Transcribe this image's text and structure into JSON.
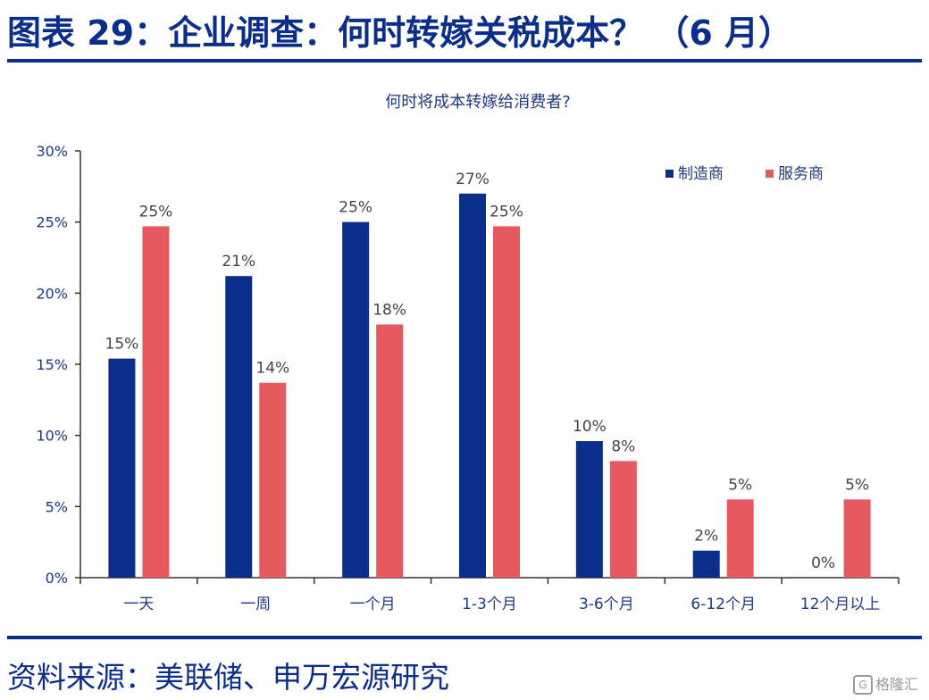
{
  "figure_title": "图表 29：企业调查：何时转嫁关税成本？ （6 月）",
  "source": "资料来源：美联储、申万宏源研究",
  "watermark": "格隆汇",
  "chart_data": {
    "type": "bar",
    "title": "何时将成本转嫁给消费者?",
    "categories": [
      "一天",
      "一周",
      "一个月",
      "1-3个月",
      "3-6个月",
      "6-12个月",
      "12个月以上"
    ],
    "series": [
      {
        "name": "制造商",
        "color": "#0b2e8a",
        "values": [
          15.4,
          21.2,
          25.0,
          27.0,
          9.6,
          1.9,
          0
        ],
        "labels": [
          "15%",
          "21%",
          "25%",
          "27%",
          "10%",
          "2%",
          "0%"
        ]
      },
      {
        "name": "服务商",
        "color": "#e65a5f",
        "values": [
          24.7,
          13.7,
          17.8,
          24.7,
          8.2,
          5.5,
          5.5
        ],
        "labels": [
          "25%",
          "14%",
          "18%",
          "25%",
          "8%",
          "5%",
          "5%"
        ]
      }
    ],
    "ylim": [
      0,
      30
    ],
    "yticks": [
      0,
      5,
      10,
      15,
      20,
      25,
      30
    ],
    "ytick_labels": [
      "0%",
      "5%",
      "10%",
      "15%",
      "20%",
      "25%",
      "30%"
    ],
    "xlabel": "",
    "ylabel": "",
    "grid": false,
    "legend_position": "top-right"
  }
}
